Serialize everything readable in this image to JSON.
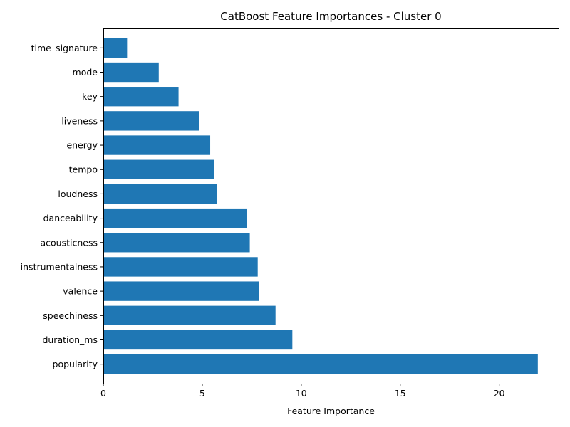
{
  "chart_data": {
    "type": "bar",
    "orientation": "horizontal",
    "title": "CatBoost Feature Importances - Cluster 0",
    "xlabel": "Feature Importance",
    "ylabel": "",
    "categories": [
      "time_signature",
      "mode",
      "key",
      "liveness",
      "energy",
      "tempo",
      "loudness",
      "danceability",
      "acousticness",
      "instrumentalness",
      "valence",
      "speechiness",
      "duration_ms",
      "popularity"
    ],
    "values": [
      1.2,
      2.8,
      3.8,
      4.85,
      5.4,
      5.6,
      5.75,
      7.25,
      7.4,
      7.8,
      7.85,
      8.7,
      9.55,
      21.95
    ],
    "xlim": [
      0,
      23
    ],
    "xticks": [
      0,
      5,
      10,
      15,
      20
    ],
    "bar_color": "#1f77b4",
    "grid": false,
    "legend": "none"
  }
}
